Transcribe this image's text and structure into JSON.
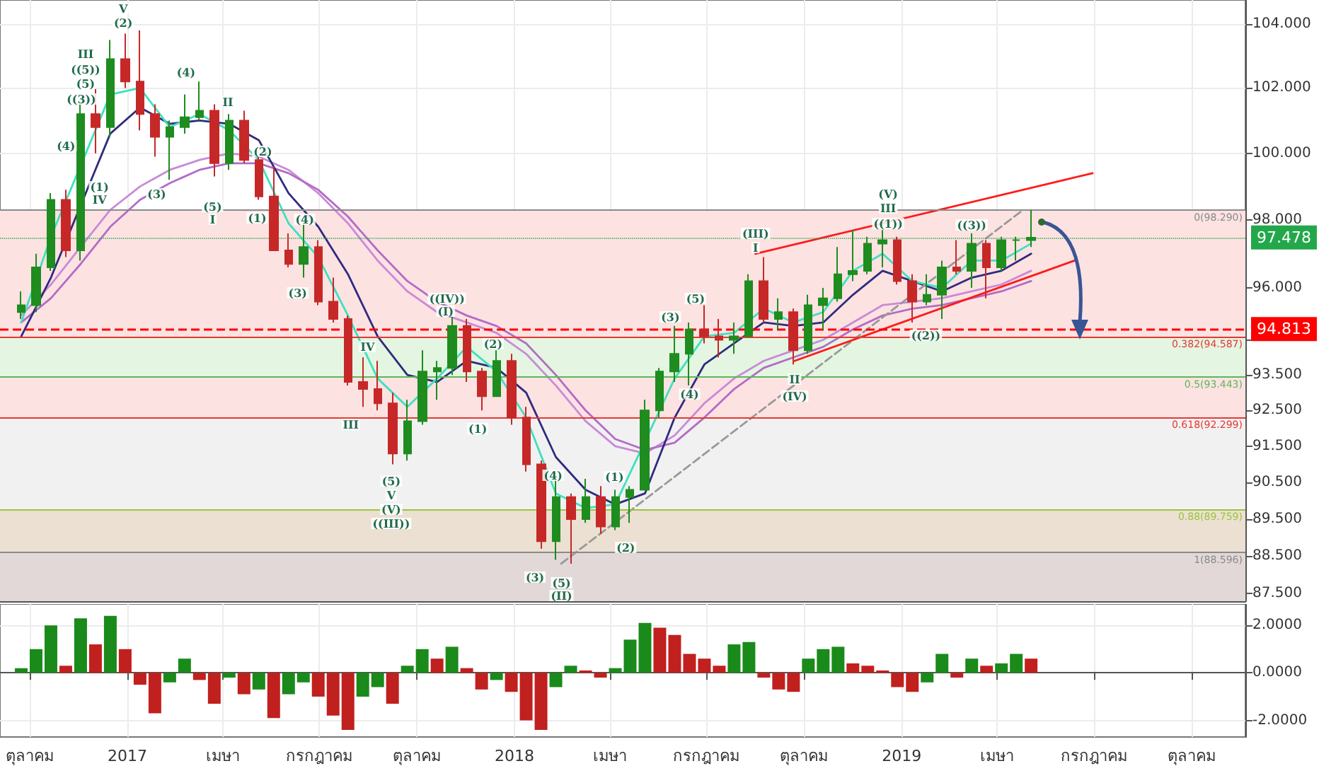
{
  "chart_data": [
    {
      "type": "candlestick",
      "log": true,
      "grid": true,
      "marker": "none",
      "tick_labels": "y",
      "xlim": [
        "2016-09-03",
        "2019-11-21"
      ],
      "xticks": [
        {
          "value": "2016-10-01",
          "label": null
        },
        {
          "value": "2017-01-01",
          "label": null
        },
        {
          "value": "2017-04-01",
          "label": null
        },
        {
          "value": "2017-07-01",
          "label": null
        },
        {
          "value": "2017-10-01",
          "label": null
        },
        {
          "value": "2018-01-01",
          "label": null
        },
        {
          "value": "2018-04-01",
          "label": null
        },
        {
          "value": "2018-07-01",
          "label": null
        },
        {
          "value": "2018-10-01",
          "label": null
        },
        {
          "value": "2019-01-01",
          "label": null
        },
        {
          "value": "2019-04-01",
          "label": null
        },
        {
          "value": "2019-07-01",
          "label": null
        },
        {
          "value": "2019-10-01",
          "label": null
        }
      ],
      "ylim": [
        87.3,
        104.76
      ],
      "yticks": [
        {
          "value": 87.5,
          "label": "87.500"
        },
        {
          "value": 88.5,
          "label": "88.500"
        },
        {
          "value": 89.5,
          "label": "89.500"
        },
        {
          "value": 90.5,
          "label": "90.500"
        },
        {
          "value": 91.5,
          "label": "91.500"
        },
        {
          "value": 92.5,
          "label": "92.500"
        },
        {
          "value": 93.5,
          "label": "93.500"
        },
        {
          "value": 94.5,
          "label": null
        },
        {
          "value": 96,
          "label": "96.000"
        },
        {
          "value": 98,
          "label": "98.000"
        },
        {
          "value": 100,
          "label": "100.000"
        },
        {
          "value": 102,
          "label": "102.000"
        },
        {
          "value": 104,
          "label": "104.000"
        }
      ],
      "series": [
        {
          "type": "line",
          "color": "#c98ad8",
          "x": [
            "2016-09-23",
            "2016-10-21",
            "2016-11-18",
            "2016-12-16",
            "2017-01-13",
            "2017-02-10",
            "2017-03-10",
            "2017-04-07",
            "2017-05-05",
            "2017-06-02",
            "2017-06-30",
            "2017-07-28",
            "2017-08-25",
            "2017-09-22",
            "2017-10-20",
            "2017-11-17",
            "2017-12-15",
            "2018-01-12",
            "2018-02-09",
            "2018-03-09",
            "2018-04-06",
            "2018-05-04",
            "2018-06-01",
            "2018-06-29",
            "2018-07-27",
            "2018-08-24",
            "2018-09-21",
            "2018-10-19",
            "2018-11-16",
            "2018-12-14",
            "2019-01-11",
            "2019-02-08",
            "2019-03-08",
            "2019-04-05",
            "2019-05-03"
          ],
          "values": [
            95.2,
            96.1,
            97.2,
            98.3,
            99.0,
            99.5,
            99.8,
            100.0,
            99.9,
            99.5,
            98.8,
            97.9,
            96.8,
            95.9,
            95.3,
            95.0,
            94.7,
            94.1,
            93.2,
            92.2,
            91.5,
            91.3,
            91.8,
            92.7,
            93.4,
            93.9,
            94.2,
            94.5,
            95.0,
            95.5,
            95.6,
            95.7,
            95.9,
            96.1,
            96.5
          ]
        },
        {
          "type": "line",
          "color": "#b36cc6",
          "x": [
            "2016-09-23",
            "2016-10-21",
            "2016-11-18",
            "2016-12-16",
            "2017-01-13",
            "2017-02-10",
            "2017-03-10",
            "2017-04-07",
            "2017-05-05",
            "2017-06-02",
            "2017-06-30",
            "2017-07-28",
            "2017-08-25",
            "2017-09-22",
            "2017-10-20",
            "2017-11-17",
            "2017-12-15",
            "2018-01-12",
            "2018-02-09",
            "2018-03-09",
            "2018-04-06",
            "2018-05-04",
            "2018-06-01",
            "2018-06-29",
            "2018-07-27",
            "2018-08-24",
            "2018-09-21",
            "2018-10-19",
            "2018-11-16",
            "2018-12-14",
            "2019-01-11",
            "2019-02-08",
            "2019-03-08",
            "2019-04-05",
            "2019-05-03"
          ],
          "values": [
            95.0,
            95.7,
            96.7,
            97.8,
            98.6,
            99.1,
            99.5,
            99.7,
            99.7,
            99.4,
            98.9,
            98.1,
            97.1,
            96.2,
            95.6,
            95.2,
            94.9,
            94.4,
            93.5,
            92.5,
            91.7,
            91.4,
            91.6,
            92.3,
            93.1,
            93.7,
            94.0,
            94.3,
            94.8,
            95.2,
            95.4,
            95.5,
            95.7,
            95.9,
            96.2
          ]
        },
        {
          "type": "line",
          "color": "#2f2b7e",
          "x": [
            "2016-09-23",
            "2016-10-21",
            "2016-11-18",
            "2016-12-16",
            "2017-01-13",
            "2017-02-10",
            "2017-03-10",
            "2017-04-07",
            "2017-05-05",
            "2017-06-02",
            "2017-06-30",
            "2017-07-28",
            "2017-08-25",
            "2017-09-22",
            "2017-10-20",
            "2017-11-17",
            "2017-12-15",
            "2018-01-12",
            "2018-02-09",
            "2018-03-09",
            "2018-04-06",
            "2018-05-04",
            "2018-06-01",
            "2018-06-29",
            "2018-07-27",
            "2018-08-24",
            "2018-09-21",
            "2018-10-19",
            "2018-11-16",
            "2018-12-14",
            "2019-01-11",
            "2019-02-08",
            "2019-03-08",
            "2019-04-05",
            "2019-05-03"
          ],
          "values": [
            94.6,
            96.3,
            null,
            100.6,
            101.4,
            100.9,
            101.0,
            100.9,
            100.4,
            98.8,
            97.8,
            96.4,
            94.6,
            93.5,
            93.3,
            93.9,
            93.7,
            93.0,
            91.2,
            90.3,
            89.9,
            90.2,
            92.3,
            93.8,
            94.4,
            95.0,
            94.9,
            95.0,
            95.8,
            96.5,
            96.2,
            95.9,
            96.3,
            96.5,
            97.0
          ]
        },
        {
          "type": "line",
          "color": "#3fe0bf",
          "x": [
            "2016-09-23",
            "2016-10-21",
            "2016-11-18",
            "2016-12-16",
            "2017-01-13",
            "2017-02-10",
            "2017-03-10",
            "2017-04-07",
            "2017-05-05",
            "2017-06-02",
            "2017-06-30",
            "2017-07-28",
            "2017-08-25",
            "2017-09-22",
            "2017-10-20",
            "2017-11-17",
            "2017-12-15",
            "2018-01-12",
            "2018-02-09",
            "2018-03-09",
            "2018-04-06",
            "2018-05-04",
            "2018-06-01",
            "2018-06-29",
            "2018-07-27",
            "2018-08-24",
            "2018-09-21",
            "2018-10-19",
            "2018-11-16",
            "2018-12-14",
            "2019-01-11",
            "2019-02-08",
            "2019-03-08",
            "2019-04-05",
            "2019-05-03"
          ],
          "values": [
            95.0,
            97.5,
            null,
            101.8,
            102.0,
            100.8,
            101.2,
            100.7,
            99.8,
            97.9,
            96.9,
            95.2,
            93.4,
            92.6,
            93.4,
            94.3,
            93.6,
            92.3,
            90.2,
            89.8,
            89.9,
            null,
            93.4,
            94.6,
            94.7,
            95.4,
            95.0,
            95.3,
            96.5,
            97.0,
            96.2,
            96.0,
            96.8,
            96.8,
            97.3
          ]
        },
        {
          "type": "line",
          "color": "#999999",
          "line_style": "dashed",
          "x": [
            "2018-02-14",
            "2019-04-25"
          ],
          "values": [
            88.3,
            98.29
          ]
        },
        {
          "type": "line",
          "color": "#ff1a1a",
          "x": [
            "2018-08-16",
            "2019-06-30"
          ],
          "values": [
            97.0,
            99.4
          ]
        },
        {
          "type": "line",
          "color": "#ff1a1a",
          "x": [
            "2018-09-22",
            "2019-06-13"
          ],
          "values": [
            93.9,
            96.8
          ]
        },
        {
          "x": [
            "2016-09-23",
            "2016-10-07",
            "2016-10-21",
            "2016-11-04",
            "2016-11-18",
            "2016-12-02",
            "2016-12-16",
            "2016-12-30",
            "2017-01-13",
            "2017-01-27",
            "2017-02-10",
            "2017-02-24",
            "2017-03-10",
            "2017-03-24",
            "2017-04-07",
            "2017-04-21",
            "2017-05-05",
            "2017-05-19",
            "2017-06-02",
            "2017-06-16",
            "2017-06-30",
            "2017-07-14",
            "2017-07-28",
            "2017-08-11",
            "2017-08-25",
            "2017-09-08",
            "2017-09-22",
            "2017-10-06",
            "2017-10-20",
            "2017-11-03",
            "2017-11-17",
            "2017-12-01",
            "2017-12-15",
            "2017-12-29",
            "2018-01-12",
            "2018-01-26",
            "2018-02-09",
            "2018-02-23",
            "2018-03-09",
            "2018-03-23",
            "2018-04-06",
            "2018-04-20",
            "2018-05-04",
            "2018-05-18",
            "2018-06-01",
            "2018-06-15",
            "2018-06-29",
            "2018-07-13",
            "2018-07-27",
            "2018-08-10",
            "2018-08-24",
            "2018-09-07",
            "2018-09-21",
            "2018-10-05",
            "2018-10-19",
            "2018-11-02",
            "2018-11-16",
            "2018-11-30",
            "2018-12-14",
            "2018-12-28",
            "2019-01-11",
            "2019-01-25",
            "2019-02-08",
            "2019-02-22",
            "2019-03-08",
            "2019-03-22",
            "2019-04-05",
            "2019-04-19",
            "2019-05-03"
          ],
          "ohlc": [
            [
              95.3,
              95.9,
              95.1,
              95.5
            ],
            [
              95.5,
              97.0,
              95.3,
              96.6
            ],
            [
              96.6,
              98.8,
              96.5,
              98.6
            ],
            [
              98.6,
              98.9,
              96.9,
              97.1
            ],
            [
              97.1,
              101.5,
              96.8,
              101.2
            ],
            [
              101.2,
              102.0,
              100.0,
              100.8
            ],
            [
              100.8,
              103.5,
              100.5,
              102.9
            ],
            [
              102.9,
              103.7,
              102.0,
              102.2
            ],
            [
              102.2,
              103.8,
              100.7,
              101.2
            ],
            [
              101.2,
              101.5,
              99.9,
              100.5
            ],
            [
              100.5,
              101.0,
              99.2,
              100.8
            ],
            [
              100.8,
              101.8,
              100.6,
              101.1
            ],
            [
              101.1,
              102.2,
              101.0,
              101.3
            ],
            [
              101.3,
              101.5,
              99.3,
              99.7
            ],
            [
              99.7,
              101.2,
              99.5,
              101.0
            ],
            [
              101.0,
              101.3,
              99.7,
              99.8
            ],
            [
              99.8,
              99.9,
              98.6,
              98.7
            ],
            [
              98.7,
              99.6,
              97.1,
              97.1
            ],
            [
              97.1,
              97.6,
              96.6,
              96.7
            ],
            [
              96.7,
              97.9,
              96.3,
              97.2
            ],
            [
              97.2,
              97.4,
              95.5,
              95.6
            ],
            [
              95.6,
              96.3,
              95.0,
              95.1
            ],
            [
              95.1,
              95.2,
              93.2,
              93.3
            ],
            [
              93.3,
              94.0,
              92.6,
              93.1
            ],
            [
              93.1,
              93.9,
              92.5,
              92.7
            ],
            [
              92.7,
              93.0,
              91.0,
              91.3
            ],
            [
              91.3,
              92.8,
              91.1,
              92.2
            ],
            [
              92.2,
              94.2,
              92.1,
              93.6
            ],
            [
              93.6,
              93.9,
              92.8,
              93.7
            ],
            [
              93.7,
              95.2,
              93.5,
              94.9
            ],
            [
              94.9,
              95.1,
              93.3,
              93.6
            ],
            [
              93.6,
              93.7,
              92.5,
              92.9
            ],
            [
              92.9,
              94.2,
              92.9,
              93.9
            ],
            [
              93.9,
              94.1,
              92.1,
              92.3
            ],
            [
              92.3,
              92.6,
              90.8,
              91.0
            ],
            [
              91.0,
              91.1,
              88.7,
              88.9
            ],
            [
              88.9,
              90.6,
              88.4,
              90.1
            ],
            [
              90.1,
              90.2,
              88.3,
              89.5
            ],
            [
              89.5,
              90.6,
              89.4,
              90.1
            ],
            [
              90.1,
              90.4,
              89.1,
              89.3
            ],
            [
              89.3,
              90.3,
              89.2,
              90.1
            ],
            [
              90.1,
              90.4,
              89.4,
              90.3
            ],
            [
              90.3,
              92.8,
              90.3,
              92.5
            ],
            [
              92.5,
              93.7,
              92.3,
              93.6
            ],
            [
              93.6,
              94.9,
              93.3,
              94.1
            ],
            [
              94.1,
              95.0,
              93.2,
              94.8
            ],
            [
              94.8,
              95.5,
              94.4,
              94.6
            ],
            [
              94.6,
              95.1,
              94.0,
              94.5
            ],
            [
              94.5,
              95.0,
              94.1,
              94.6
            ],
            [
              94.6,
              96.4,
              94.6,
              96.2
            ],
            [
              96.2,
              96.9,
              95.0,
              95.1
            ],
            [
              95.1,
              95.7,
              94.8,
              95.3
            ],
            [
              95.3,
              95.4,
              93.8,
              94.2
            ],
            [
              94.2,
              95.8,
              94.1,
              95.5
            ],
            [
              95.5,
              96.0,
              94.8,
              95.7
            ],
            [
              95.7,
              97.2,
              95.6,
              96.4
            ],
            [
              96.4,
              97.7,
              96.2,
              96.5
            ],
            [
              96.5,
              97.5,
              96.4,
              97.3
            ],
            [
              97.3,
              97.7,
              96.6,
              97.4
            ],
            [
              97.4,
              97.5,
              96.1,
              96.2
            ],
            [
              96.2,
              96.4,
              95.0,
              95.6
            ],
            [
              95.6,
              96.4,
              95.5,
              95.8
            ],
            [
              95.8,
              96.8,
              95.1,
              96.6
            ],
            [
              96.6,
              97.4,
              96.4,
              96.5
            ],
            [
              96.5,
              97.6,
              96.0,
              97.3
            ],
            [
              97.3,
              97.4,
              95.7,
              96.6
            ],
            [
              96.6,
              97.5,
              96.5,
              97.4
            ],
            [
              97.4,
              97.5,
              96.8,
              97.4
            ],
            [
              97.4,
              98.3,
              97.2,
              97.478
            ]
          ],
          "colors": [
            "#1e8c1e",
            "#1e8c1e",
            "#1e8c1e",
            "#c62828",
            "#1e8c1e",
            "#c62828",
            "#1e8c1e",
            "#c62828",
            "#c62828",
            "#c62828",
            "#1e8c1e",
            "#1e8c1e",
            "#1e8c1e",
            "#c62828",
            "#1e8c1e",
            "#c62828",
            "#c62828",
            "#c62828",
            "#c62828",
            "#1e8c1e",
            "#c62828",
            "#c62828",
            "#c62828",
            "#c62828",
            "#c62828",
            "#c62828",
            "#1e8c1e",
            "#1e8c1e",
            "#1e8c1e",
            "#1e8c1e",
            "#c62828",
            "#c62828",
            "#1e8c1e",
            "#c62828",
            "#c62828",
            "#c62828",
            "#1e8c1e",
            "#c62828",
            "#1e8c1e",
            "#c62828",
            "#1e8c1e",
            "#1e8c1e",
            "#1e8c1e",
            "#1e8c1e",
            "#1e8c1e",
            "#1e8c1e",
            "#c62828",
            "#c62828",
            "#1e8c1e",
            "#1e8c1e",
            "#c62828",
            "#1e8c1e",
            "#c62828",
            "#1e8c1e",
            "#1e8c1e",
            "#1e8c1e",
            "#1e8c1e",
            "#1e8c1e",
            "#1e8c1e",
            "#c62828",
            "#c62828",
            "#1e8c1e",
            "#1e8c1e",
            "#c62828",
            "#1e8c1e",
            "#c62828",
            "#1e8c1e",
            "#1e8c1e",
            "#1e8c1e"
          ]
        }
      ],
      "bands": [
        {
          "axis": "y",
          "from": 94.587,
          "to": 98.29,
          "color": "#fde2e2"
        },
        {
          "axis": "y",
          "from": 93.443,
          "to": 94.587,
          "color": "#e4f5e2"
        },
        {
          "axis": "y",
          "from": 92.299,
          "to": 93.443,
          "color": "#fde2e2"
        },
        {
          "axis": "y",
          "from": 89.759,
          "to": 92.299,
          "color": "#f1f1f1"
        },
        {
          "axis": "y",
          "from": 88.596,
          "to": 89.759,
          "color": "#ebe0d2"
        },
        {
          "axis": "y",
          "from": 87.3,
          "to": 88.596,
          "color": "#e2d8d8"
        }
      ],
      "ref_lines": [
        {
          "axis": "y",
          "value": 98.29,
          "label": "0(98.290)",
          "color": "#8a8a8a"
        },
        {
          "axis": "y",
          "value": 94.587,
          "label": "0.382(94.587)",
          "color": "#e53935"
        },
        {
          "axis": "y",
          "value": 93.443,
          "label": "0.5(93.443)",
          "color": "#5cb85c"
        },
        {
          "axis": "y",
          "value": 92.299,
          "label": "0.618(92.299)",
          "color": "#e53935"
        },
        {
          "axis": "y",
          "value": 89.759,
          "label": "0.88(89.759)",
          "color": "#9bc53d"
        },
        {
          "axis": "y",
          "value": 88.596,
          "label": "1(88.596)",
          "color": "#8a8a8a"
        },
        {
          "axis": "y",
          "value": 94.813,
          "label": "94.813",
          "color": "#ff0000",
          "line_style": "dashed"
        },
        {
          "axis": "y",
          "value": 97.478,
          "label": "97.478",
          "color": "#22a84a",
          "line_style": "dotted"
        }
      ],
      "annotations": [
        "V",
        "(2)",
        "III",
        "((5))",
        "(5)",
        "((3))",
        "(4)",
        "(1)",
        "IV",
        "(4)",
        "II",
        "(3)",
        "(5)",
        "I",
        "(2)",
        "(1)",
        "(4)",
        "(3)",
        "IV",
        "III",
        "(5)",
        "V",
        "(V)",
        "((III))",
        "((IV))",
        "(I)",
        "(2)",
        "(1)",
        "(4)",
        "(3)",
        "(5)",
        "(II)",
        "(1)",
        "(2)",
        "(3)",
        "(5)",
        {
          "text": "(4)",
          "x": "2018-06-15",
          "y": 93.2
        },
        "(III)",
        "I",
        "II",
        "(IV)",
        "(V)",
        "III",
        "((1))",
        {
          "text": "((3))",
          "x": "2019-03-08",
          "y": 97.6
        },
        "((2))"
      ]
    },
    {
      "type": "bar",
      "grid": true,
      "xlim": [
        "2016-09-03",
        "2019-11-21"
      ],
      "xticks": [
        {
          "value": "2016-10-01",
          "label": "ตุลาคม"
        },
        {
          "value": "2017-01-01",
          "label": "2017"
        },
        {
          "value": "2017-04-01",
          "label": "เมษา"
        },
        {
          "value": "2017-07-01",
          "label": "กรกฎาคม"
        },
        {
          "value": "2017-10-01",
          "label": "ตุลาคม"
        },
        {
          "value": "2018-01-01",
          "label": "2018"
        },
        {
          "value": "2018-04-01",
          "label": "เมษา"
        },
        {
          "value": "2018-07-01",
          "label": "กรกฎาคม"
        },
        {
          "value": "2018-10-01",
          "label": "ตุลาคม"
        },
        {
          "value": "2019-01-01",
          "label": "2019"
        },
        {
          "value": "2019-04-01",
          "label": "เมษา"
        },
        {
          "value": "2019-07-01",
          "label": "กรกฎาคม"
        },
        {
          "value": "2019-10-01",
          "label": "ตุลาคม"
        }
      ],
      "ylim": [
        -2.7,
        2.9
      ],
      "yticks": [
        {
          "value": -2,
          "label": "-2.0000"
        },
        {
          "value": 0,
          "label": "0.0000"
        },
        {
          "value": 2,
          "label": "2.0000"
        }
      ],
      "x": [
        "2016-09-23",
        "2016-10-07",
        "2016-10-21",
        "2016-11-04",
        "2016-11-18",
        "2016-12-02",
        "2016-12-16",
        "2016-12-30",
        "2017-01-13",
        "2017-01-27",
        "2017-02-10",
        "2017-02-24",
        "2017-03-10",
        "2017-03-24",
        "2017-04-07",
        "2017-04-21",
        "2017-05-05",
        "2017-05-19",
        "2017-06-02",
        "2017-06-16",
        "2017-06-30",
        "2017-07-14",
        "2017-07-28",
        "2017-08-11",
        "2017-08-25",
        "2017-09-08",
        "2017-09-22",
        "2017-10-06",
        "2017-10-20",
        "2017-11-03",
        "2017-11-17",
        "2017-12-01",
        "2017-12-15",
        "2017-12-29",
        "2018-01-12",
        "2018-01-26",
        "2018-02-09",
        "2018-02-23",
        "2018-03-09",
        "2018-03-23",
        "2018-04-06",
        "2018-04-20",
        "2018-05-04",
        "2018-05-18",
        "2018-06-01",
        "2018-06-15",
        "2018-06-29",
        "2018-07-13",
        "2018-07-27",
        "2018-08-10",
        "2018-08-24",
        "2018-09-07",
        "2018-09-21",
        "2018-10-05",
        "2018-10-19",
        "2018-11-02",
        "2018-11-16",
        "2018-11-30",
        "2018-12-14",
        "2018-12-28",
        "2019-01-11",
        "2019-01-25",
        "2019-02-08",
        "2019-02-22",
        "2019-03-08",
        "2019-03-22",
        "2019-04-05",
        "2019-04-19",
        "2019-05-03"
      ],
      "values": [
        0.2,
        1.0,
        2.0,
        0.3,
        2.3,
        1.2,
        2.4,
        1.0,
        -0.5,
        -1.7,
        -0.4,
        0.6,
        -0.3,
        -1.3,
        -0.2,
        -0.9,
        -0.7,
        -1.9,
        -0.9,
        -0.4,
        -1.0,
        -1.8,
        -2.4,
        -1.0,
        -0.6,
        -1.3,
        0.3,
        1.0,
        0.6,
        1.1,
        0.2,
        -0.7,
        -0.3,
        -0.8,
        -2.0,
        -2.4,
        -0.6,
        0.3,
        0.1,
        -0.2,
        0.2,
        1.4,
        2.1,
        1.9,
        1.6,
        0.8,
        0.6,
        0.3,
        1.2,
        1.3,
        -0.2,
        -0.7,
        -0.8,
        0.6,
        1.0,
        1.1,
        0.4,
        0.3,
        0.1,
        -0.6,
        -0.8,
        -0.4,
        0.8,
        -0.2,
        0.6,
        0.3,
        0.4,
        0.8,
        0.6
      ],
      "colors": [
        "#1a8a1a",
        "#1a8a1a",
        "#1a8a1a",
        "#c0201e",
        "#1a8a1a",
        "#c0201e",
        "#1a8a1a",
        "#c0201e",
        "#c0201e",
        "#c0201e",
        "#1a8a1a",
        "#1a8a1a",
        "#c0201e",
        "#c0201e",
        "#1a8a1a",
        "#c0201e",
        "#1a8a1a",
        "#c0201e",
        "#1a8a1a",
        "#1a8a1a",
        "#c0201e",
        "#c0201e",
        "#c0201e",
        "#1a8a1a",
        "#1a8a1a",
        "#c0201e",
        "#1a8a1a",
        "#1a8a1a",
        "#c0201e",
        "#1a8a1a",
        "#c0201e",
        "#c0201e",
        "#1a8a1a",
        "#c0201e",
        "#c0201e",
        "#c0201e",
        "#1a8a1a",
        "#1a8a1a",
        "#c0201e",
        "#c0201e",
        "#1a8a1a",
        "#1a8a1a",
        "#1a8a1a",
        "#c0201e",
        "#c0201e",
        "#c0201e",
        "#c0201e",
        "#c0201e",
        "#1a8a1a",
        "#1a8a1a",
        "#c0201e",
        "#c0201e",
        "#c0201e",
        "#1a8a1a",
        "#1a8a1a",
        "#1a8a1a",
        "#c0201e",
        "#c0201e",
        "#c0201e",
        "#c0201e",
        "#c0201e",
        "#1a8a1a",
        "#1a8a1a",
        "#c0201e",
        "#1a8a1a",
        "#c0201e",
        "#1a8a1a",
        "#1a8a1a",
        "#c0201e"
      ]
    }
  ]
}
